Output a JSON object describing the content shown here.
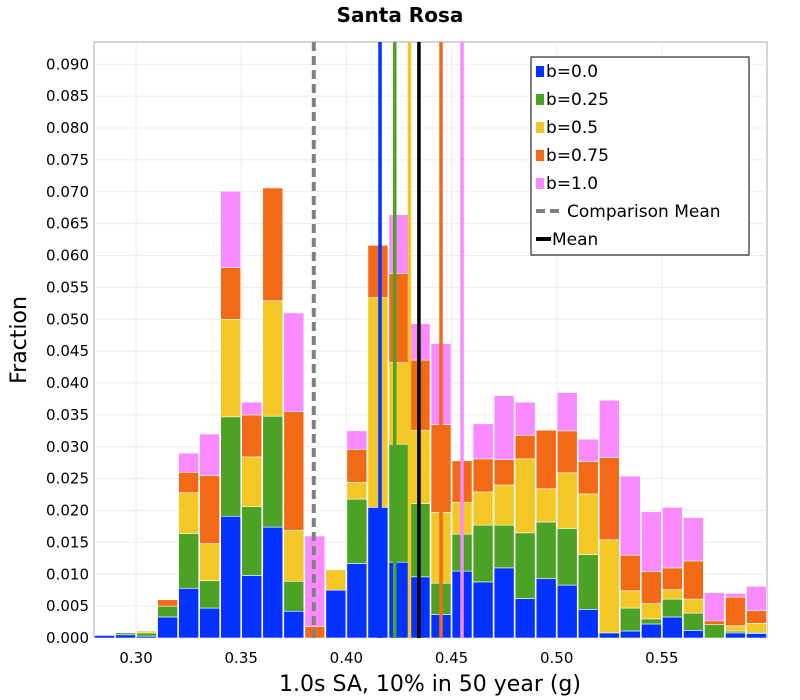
{
  "chart_data": {
    "type": "bar",
    "stacked": true,
    "title": "Santa Rosa",
    "xlabel": "1.0s SA, 10% in 50 year (g)",
    "ylabel": "Fraction",
    "xlim": [
      0.28,
      0.6
    ],
    "ylim": [
      0.0,
      0.0935
    ],
    "bin_width": 0.01,
    "grid": true,
    "legend_position": "top-right",
    "xticks": [
      "0.30",
      "0.35",
      "0.40",
      "0.45",
      "0.50",
      "0.55"
    ],
    "yticks": [
      "0.000",
      "0.005",
      "0.010",
      "0.015",
      "0.020",
      "0.025",
      "0.030",
      "0.035",
      "0.040",
      "0.045",
      "0.050",
      "0.055",
      "0.060",
      "0.065",
      "0.070",
      "0.075",
      "0.080",
      "0.085",
      "0.090"
    ],
    "bins": [
      0.28,
      0.29,
      0.3,
      0.31,
      0.32,
      0.33,
      0.34,
      0.35,
      0.36,
      0.37,
      0.38,
      0.39,
      0.4,
      0.41,
      0.42,
      0.43,
      0.44,
      0.45,
      0.46,
      0.47,
      0.48,
      0.49,
      0.5,
      0.51,
      0.52,
      0.53,
      0.54,
      0.55,
      0.56,
      0.57,
      0.58,
      0.59
    ],
    "series": [
      {
        "name": "b=0.0",
        "color": "#0433ff",
        "values": [
          0.0004,
          0.0005,
          0.0003,
          0.0033,
          0.0078,
          0.0047,
          0.0191,
          0.0098,
          0.0174,
          0.0042,
          0.0,
          0.0075,
          0.0117,
          0.0205,
          0.0119,
          0.0096,
          0.0037,
          0.0105,
          0.0088,
          0.011,
          0.0062,
          0.0093,
          0.0083,
          0.0045,
          0.0008,
          0.0011,
          0.0022,
          0.0033,
          0.0012,
          0.0,
          0.0008,
          0.0007
        ]
      },
      {
        "name": "b=0.25",
        "color": "#4ca224",
        "values": [
          0.0,
          0.0003,
          0.0005,
          0.0017,
          0.0086,
          0.0043,
          0.0156,
          0.0108,
          0.0174,
          0.0047,
          0.0,
          0.0,
          0.0101,
          0.0,
          0.0185,
          0.0115,
          0.0049,
          0.0058,
          0.0089,
          0.0067,
          0.0103,
          0.0089,
          0.0089,
          0.0086,
          0.0,
          0.0036,
          0.0008,
          0.0028,
          0.0027,
          0.0021,
          0.0003,
          0.0002
        ]
      },
      {
        "name": "b=0.5",
        "color": "#f3c726",
        "values": [
          0.0,
          0.0,
          0.0003,
          0.0,
          0.0064,
          0.0058,
          0.0153,
          0.0078,
          0.0181,
          0.008,
          0.0,
          0.0032,
          0.0026,
          0.0329,
          0.0128,
          0.0115,
          0.0111,
          0.005,
          0.0052,
          0.0063,
          0.0116,
          0.0052,
          0.0087,
          0.0095,
          0.0146,
          0.0027,
          0.0024,
          0.0015,
          0.0022,
          0.0,
          0.0008,
          0.0014
        ]
      },
      {
        "name": "b=0.75",
        "color": "#f26916",
        "values": [
          0.0,
          0.0,
          0.0,
          0.001,
          0.0032,
          0.0107,
          0.0081,
          0.0066,
          0.0177,
          0.0186,
          0.0018,
          0.0,
          0.0052,
          0.0082,
          0.014,
          0.011,
          0.0138,
          0.0065,
          0.0052,
          0.004,
          0.0037,
          0.0092,
          0.0066,
          0.0051,
          0.0129,
          0.0056,
          0.005,
          0.0034,
          0.006,
          0.0006,
          0.0045,
          0.002
        ]
      },
      {
        "name": "b=1.0",
        "color": "#fa8aff",
        "values": [
          0.0,
          0.0,
          0.0,
          0.0,
          0.003,
          0.0065,
          0.012,
          0.002,
          0.0,
          0.0155,
          0.0142,
          0.0,
          0.0029,
          0.0,
          0.0092,
          0.0057,
          0.0127,
          0.0,
          0.0055,
          0.01,
          0.0052,
          0.0,
          0.006,
          0.0035,
          0.009,
          0.0124,
          0.0094,
          0.0095,
          0.0068,
          0.0044,
          0.0006,
          0.0038
        ]
      }
    ],
    "vertical_lines": [
      {
        "name": "b=0.0 mean",
        "x": 0.416,
        "color": "#0433ff"
      },
      {
        "name": "b=0.25 mean",
        "x": 0.423,
        "color": "#4ca224"
      },
      {
        "name": "b=0.5 mean",
        "x": 0.43,
        "color": "#f3c726"
      },
      {
        "name": "b=0.75 mean",
        "x": 0.445,
        "color": "#f26916"
      },
      {
        "name": "b=1.0 mean",
        "x": 0.455,
        "color": "#fa8aff"
      },
      {
        "name": "Comparison Mean",
        "x": 0.3845,
        "color": "#808080",
        "dashed": true
      },
      {
        "name": "Mean",
        "x": 0.4345,
        "color": "#000000"
      }
    ],
    "legend": [
      {
        "label": "b=0.0",
        "marker": "square",
        "color": "#0433ff"
      },
      {
        "label": "b=0.25",
        "marker": "square",
        "color": "#4ca224"
      },
      {
        "label": "b=0.5",
        "marker": "square",
        "color": "#f3c726"
      },
      {
        "label": "b=0.75",
        "marker": "square",
        "color": "#f26916"
      },
      {
        "label": "b=1.0",
        "marker": "square",
        "color": "#fa8aff"
      },
      {
        "label": "Comparison Mean",
        "marker": "dashed-line",
        "color": "#808080"
      },
      {
        "label": "Mean",
        "marker": "line",
        "color": "#000000"
      }
    ]
  }
}
